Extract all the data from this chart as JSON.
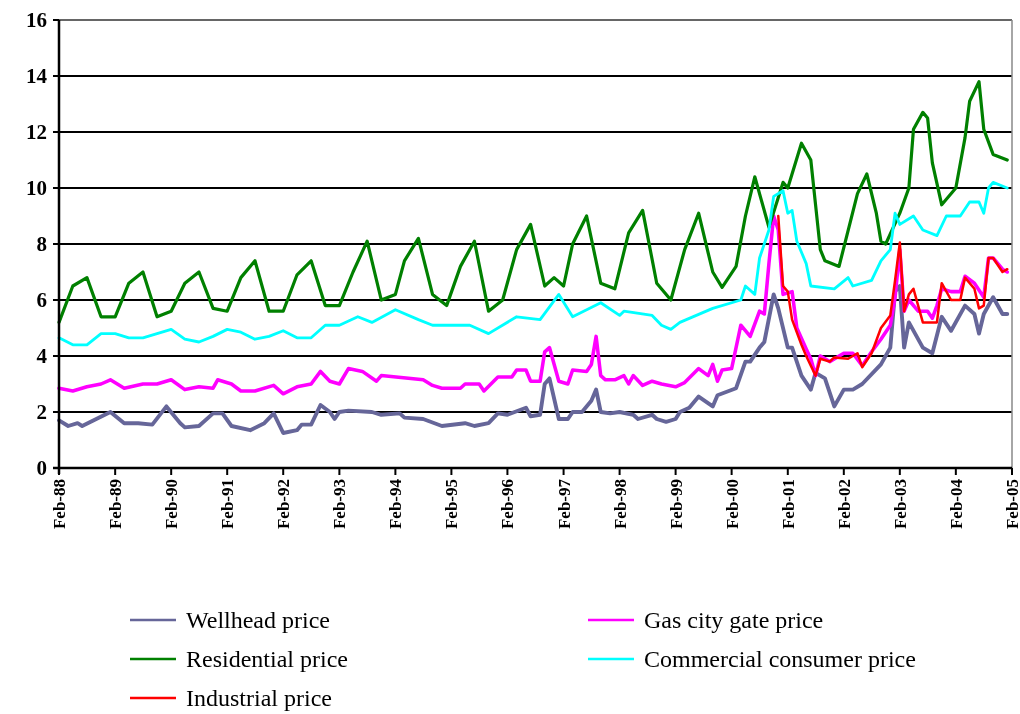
{
  "chart_data": {
    "type": "line",
    "ylim": [
      0,
      16
    ],
    "yticks": [
      0,
      2,
      4,
      6,
      8,
      10,
      12,
      14,
      16
    ],
    "xlim": [
      "1988-02",
      "2005-02"
    ],
    "xticks": [
      {
        "value": "1988-02",
        "label": "Feb-88"
      },
      {
        "value": "1989-02",
        "label": "Feb-89"
      },
      {
        "value": "1990-02",
        "label": "Feb-90"
      },
      {
        "value": "1991-02",
        "label": "Feb-91"
      },
      {
        "value": "1992-02",
        "label": "Feb-92"
      },
      {
        "value": "1993-02",
        "label": "Feb-93"
      },
      {
        "value": "1994-02",
        "label": "Feb-94"
      },
      {
        "value": "1995-02",
        "label": "Feb-95"
      },
      {
        "value": "1996-02",
        "label": "Feb-96"
      },
      {
        "value": "1997-02",
        "label": "Feb-97"
      },
      {
        "value": "1998-02",
        "label": "Feb-98"
      },
      {
        "value": "1999-02",
        "label": "Feb-99"
      },
      {
        "value": "2000-02",
        "label": "Feb-00"
      },
      {
        "value": "2001-02",
        "label": "Feb-01"
      },
      {
        "value": "2002-02",
        "label": "Feb-02"
      },
      {
        "value": "2003-02",
        "label": "Feb-03"
      },
      {
        "value": "2004-02",
        "label": "Feb-04"
      },
      {
        "value": "2005-02",
        "label": "Feb-05"
      }
    ],
    "grid": "y",
    "legend": "bottom",
    "series": [
      {
        "name": "Wellhead price",
        "color": "#666699",
        "x": [
          "1988-02",
          "1988-04",
          "1988-06",
          "1988-07",
          "1989-01",
          "1989-04",
          "1989-07",
          "1989-10",
          "1990-01",
          "1990-04",
          "1990-05",
          "1990-08",
          "1990-11",
          "1991-01",
          "1991-03",
          "1991-07",
          "1991-10",
          "1991-12",
          "1992-02",
          "1992-05",
          "1992-06",
          "1992-08",
          "1992-10",
          "1992-12",
          "1993-01",
          "1993-02",
          "1993-04",
          "1993-09",
          "1993-11",
          "1994-03",
          "1994-04",
          "1994-08",
          "1994-12",
          "1995-05",
          "1995-07",
          "1995-10",
          "1995-12",
          "1996-02",
          "1996-06",
          "1996-07",
          "1996-09",
          "1996-10",
          "1996-11",
          "1997-01",
          "1997-03",
          "1997-04",
          "1997-06",
          "1997-08",
          "1997-09",
          "1997-10",
          "1997-12",
          "1998-02",
          "1998-05",
          "1998-06",
          "1998-09",
          "1998-10",
          "1998-12",
          "1999-02",
          "1999-03",
          "1999-05",
          "1999-07",
          "1999-10",
          "1999-11",
          "2000-03",
          "2000-05",
          "2000-06",
          "2000-08",
          "2000-09",
          "2000-11",
          "2000-12",
          "2001-02",
          "2001-03",
          "2001-05",
          "2001-07",
          "2001-08",
          "2001-10",
          "2001-12",
          "2002-02",
          "2002-04",
          "2002-06",
          "2002-10",
          "2002-12",
          "2003-01",
          "2003-02",
          "2003-03",
          "2003-04",
          "2003-07",
          "2003-09",
          "2003-11",
          "2004-01",
          "2004-04",
          "2004-06",
          "2004-07",
          "2004-08",
          "2004-10",
          "2004-12",
          "2005-01"
        ],
        "values": [
          1.7,
          1.5,
          1.6,
          1.5,
          2.0,
          1.6,
          1.6,
          1.55,
          2.2,
          1.6,
          1.45,
          1.5,
          1.95,
          1.95,
          1.5,
          1.35,
          1.6,
          1.95,
          1.25,
          1.35,
          1.55,
          1.55,
          2.25,
          2.0,
          1.75,
          2.0,
          2.05,
          2.0,
          1.9,
          1.95,
          1.8,
          1.75,
          1.5,
          1.6,
          1.5,
          1.6,
          1.95,
          1.9,
          2.15,
          1.85,
          1.9,
          3.0,
          3.2,
          1.75,
          1.75,
          2.0,
          2.0,
          2.4,
          2.8,
          2.0,
          1.95,
          2.0,
          1.9,
          1.75,
          1.9,
          1.75,
          1.65,
          1.75,
          2.0,
          2.15,
          2.55,
          2.2,
          2.6,
          2.85,
          3.8,
          3.8,
          4.3,
          4.5,
          6.2,
          5.7,
          4.3,
          4.3,
          3.3,
          2.8,
          3.4,
          3.2,
          2.2,
          2.8,
          2.8,
          3.0,
          3.7,
          4.3,
          6.3,
          6.5,
          4.3,
          5.2,
          4.3,
          4.1,
          5.4,
          4.9,
          5.8,
          5.5,
          4.8,
          5.5,
          6.1,
          5.5,
          5.5
        ]
      },
      {
        "name": "Gas city gate price",
        "color": "#ff00ff",
        "x": [
          "1988-02",
          "1988-05",
          "1988-08",
          "1988-11",
          "1989-01",
          "1989-04",
          "1989-08",
          "1989-11",
          "1990-02",
          "1990-05",
          "1990-08",
          "1990-11",
          "1990-12",
          "1991-03",
          "1991-05",
          "1991-08",
          "1991-12",
          "1992-02",
          "1992-05",
          "1992-08",
          "1992-10",
          "1992-12",
          "1993-02",
          "1993-04",
          "1993-07",
          "1993-10",
          "1993-11",
          "1994-08",
          "1994-10",
          "1994-12",
          "1995-04",
          "1995-05",
          "1995-08",
          "1995-09",
          "1995-12",
          "1996-03",
          "1996-04",
          "1996-06",
          "1996-07",
          "1996-09",
          "1996-10",
          "1996-11",
          "1997-01",
          "1997-03",
          "1997-04",
          "1997-07",
          "1997-08",
          "1997-09",
          "1997-10",
          "1997-11",
          "1998-01",
          "1998-03",
          "1998-04",
          "1998-05",
          "1998-07",
          "1998-09",
          "1998-11",
          "1999-02",
          "1999-04",
          "1999-07",
          "1999-09",
          "1999-10",
          "1999-11",
          "1999-12",
          "2000-02",
          "2000-04",
          "2000-06",
          "2000-08",
          "2000-09",
          "2000-10",
          "2000-11",
          "2000-12",
          "2001-01",
          "2001-03",
          "2001-04",
          "2001-06",
          "2001-07",
          "2001-08",
          "2001-09",
          "2001-11",
          "2002-02",
          "2002-04",
          "2002-06",
          "2002-08",
          "2002-10",
          "2002-12",
          "2003-01",
          "2003-02",
          "2003-03",
          "2003-04",
          "2003-06",
          "2003-08",
          "2003-09",
          "2003-10",
          "2003-11",
          "2004-01",
          "2004-03",
          "2004-04",
          "2004-06",
          "2004-08",
          "2004-09",
          "2004-10",
          "2004-12",
          "2005-01"
        ],
        "values": [
          2.85,
          2.75,
          2.9,
          3.0,
          3.15,
          2.85,
          3.0,
          3.0,
          3.15,
          2.8,
          2.9,
          2.85,
          3.15,
          3.0,
          2.75,
          2.75,
          2.95,
          2.65,
          2.9,
          3.0,
          3.45,
          3.1,
          3.0,
          3.55,
          3.45,
          3.1,
          3.3,
          3.15,
          2.95,
          2.85,
          2.85,
          3.0,
          3.0,
          2.75,
          3.25,
          3.25,
          3.5,
          3.5,
          3.1,
          3.1,
          4.15,
          4.3,
          3.1,
          3.0,
          3.5,
          3.45,
          3.7,
          4.7,
          3.3,
          3.15,
          3.15,
          3.3,
          3.0,
          3.3,
          2.95,
          3.1,
          3.0,
          2.9,
          3.05,
          3.55,
          3.3,
          3.7,
          3.1,
          3.5,
          3.55,
          5.1,
          4.7,
          5.6,
          5.5,
          7.3,
          9.0,
          8.5,
          6.2,
          6.3,
          5.0,
          4.25,
          3.9,
          3.3,
          4.0,
          3.8,
          4.1,
          4.1,
          3.65,
          4.15,
          4.6,
          5.1,
          6.1,
          7.8,
          5.6,
          6.0,
          5.6,
          5.6,
          5.35,
          5.8,
          6.4,
          6.3,
          6.3,
          6.85,
          6.6,
          6.1,
          7.5,
          7.5,
          7.1,
          7.0
        ]
      },
      {
        "name": "Residential price",
        "color": "#008000",
        "x": [
          "1988-02",
          "1988-05",
          "1988-08",
          "1988-11",
          "1989-02",
          "1989-05",
          "1989-08",
          "1989-11",
          "1990-02",
          "1990-05",
          "1990-08",
          "1990-11",
          "1991-02",
          "1991-05",
          "1991-08",
          "1991-11",
          "1992-02",
          "1992-05",
          "1992-08",
          "1992-11",
          "1993-02",
          "1993-05",
          "1993-08",
          "1993-11",
          "1994-02",
          "1994-04",
          "1994-07",
          "1994-10",
          "1995-01",
          "1995-04",
          "1995-07",
          "1995-10",
          "1996-01",
          "1996-04",
          "1996-07",
          "1996-10",
          "1996-12",
          "1997-02",
          "1997-04",
          "1997-07",
          "1997-10",
          "1998-01",
          "1998-04",
          "1998-07",
          "1998-10",
          "1999-01",
          "1999-04",
          "1999-07",
          "1999-10",
          "1999-12",
          "2000-03",
          "2000-05",
          "2000-07",
          "2000-10",
          "2001-01",
          "2001-02",
          "2001-05",
          "2001-07",
          "2001-08",
          "2001-09",
          "2001-10",
          "2002-01",
          "2002-05",
          "2002-07",
          "2002-09",
          "2002-10",
          "2002-11",
          "2003-02",
          "2003-04",
          "2003-05",
          "2003-07",
          "2003-08",
          "2003-09",
          "2003-11",
          "2004-02",
          "2004-04",
          "2004-05",
          "2004-07",
          "2004-08",
          "2004-10",
          "2005-01"
        ],
        "values": [
          5.2,
          6.5,
          6.8,
          5.4,
          5.4,
          6.6,
          7.0,
          5.4,
          5.6,
          6.6,
          7.0,
          5.7,
          5.6,
          6.8,
          7.4,
          5.6,
          5.6,
          6.9,
          7.4,
          5.8,
          5.8,
          7.0,
          8.1,
          6.0,
          6.2,
          7.4,
          8.2,
          6.2,
          5.8,
          7.2,
          8.1,
          5.6,
          6.0,
          7.8,
          8.7,
          6.5,
          6.8,
          6.5,
          8.0,
          9.0,
          6.6,
          6.4,
          8.4,
          9.2,
          6.6,
          6.0,
          7.8,
          9.1,
          7.0,
          6.45,
          7.2,
          9.0,
          10.4,
          8.6,
          10.2,
          10.0,
          11.6,
          11.0,
          9.4,
          7.8,
          7.4,
          7.2,
          9.8,
          10.5,
          9.1,
          8.1,
          8.0,
          9.1,
          10.0,
          12.1,
          12.7,
          12.5,
          10.9,
          9.4,
          10.0,
          11.8,
          13.1,
          13.8,
          12.1,
          11.2,
          11.0
        ]
      },
      {
        "name": "Commercial consumer price",
        "color": "#00ffff",
        "x": [
          "1988-02",
          "1988-05",
          "1988-08",
          "1988-11",
          "1989-02",
          "1989-05",
          "1989-08",
          "1989-11",
          "1990-02",
          "1990-05",
          "1990-08",
          "1990-11",
          "1991-02",
          "1991-05",
          "1991-08",
          "1991-11",
          "1992-02",
          "1992-05",
          "1992-08",
          "1992-11",
          "1993-02",
          "1993-06",
          "1993-09",
          "1994-02",
          "1994-07",
          "1994-10",
          "1995-06",
          "1995-10",
          "1996-04",
          "1996-09",
          "1997-01",
          "1997-04",
          "1997-10",
          "1998-02",
          "1998-03",
          "1998-09",
          "1998-11",
          "1999-01",
          "1999-03",
          "1999-10",
          "2000-04",
          "2000-05",
          "2000-07",
          "2000-08",
          "2000-10",
          "2000-11",
          "2001-01",
          "2001-02",
          "2001-03",
          "2001-04",
          "2001-06",
          "2001-07",
          "2001-12",
          "2002-03",
          "2002-04",
          "2002-08",
          "2002-10",
          "2002-12",
          "2003-01",
          "2003-02",
          "2003-05",
          "2003-07",
          "2003-10",
          "2003-12",
          "2004-03",
          "2004-05",
          "2004-07",
          "2004-08",
          "2004-09",
          "2004-10",
          "2005-01"
        ],
        "values": [
          4.65,
          4.4,
          4.4,
          4.8,
          4.8,
          4.65,
          4.65,
          4.8,
          4.95,
          4.6,
          4.5,
          4.7,
          4.95,
          4.85,
          4.6,
          4.7,
          4.9,
          4.65,
          4.65,
          5.1,
          5.1,
          5.4,
          5.2,
          5.65,
          5.3,
          5.1,
          5.1,
          4.8,
          5.4,
          5.3,
          6.2,
          5.4,
          5.9,
          5.45,
          5.6,
          5.45,
          5.1,
          4.95,
          5.2,
          5.7,
          6.0,
          6.5,
          6.2,
          7.5,
          8.5,
          9.7,
          9.9,
          9.1,
          9.2,
          8.1,
          7.3,
          6.5,
          6.4,
          6.8,
          6.5,
          6.7,
          7.4,
          7.8,
          9.1,
          8.7,
          9.0,
          8.5,
          8.3,
          9.0,
          9.0,
          9.5,
          9.5,
          9.1,
          10.0,
          10.2,
          10.0
        ]
      },
      {
        "name": "Industrial price",
        "color": "#ff0000",
        "x": [
          "2000-12",
          "2001-01",
          "2001-02",
          "2001-03",
          "2001-05",
          "2001-06",
          "2001-08",
          "2001-09",
          "2001-11",
          "2001-12",
          "2002-03",
          "2002-05",
          "2002-06",
          "2002-08",
          "2002-10",
          "2002-12",
          "2003-01",
          "2003-02",
          "2003-03",
          "2003-04",
          "2003-05",
          "2003-07",
          "2003-10",
          "2003-11",
          "2004-01",
          "2004-03",
          "2004-04",
          "2004-06",
          "2004-07",
          "2004-08",
          "2004-09",
          "2004-10",
          "2004-12",
          "2005-01"
        ],
        "values": [
          9.0,
          6.5,
          6.3,
          5.3,
          4.4,
          4.0,
          3.3,
          3.9,
          3.8,
          3.95,
          3.9,
          4.1,
          3.6,
          4.1,
          5.0,
          5.45,
          6.7,
          8.05,
          5.6,
          6.2,
          6.4,
          5.2,
          5.2,
          6.6,
          6.0,
          6.0,
          6.8,
          6.4,
          5.7,
          5.8,
          7.5,
          7.5,
          7.0,
          7.1
        ]
      }
    ]
  }
}
